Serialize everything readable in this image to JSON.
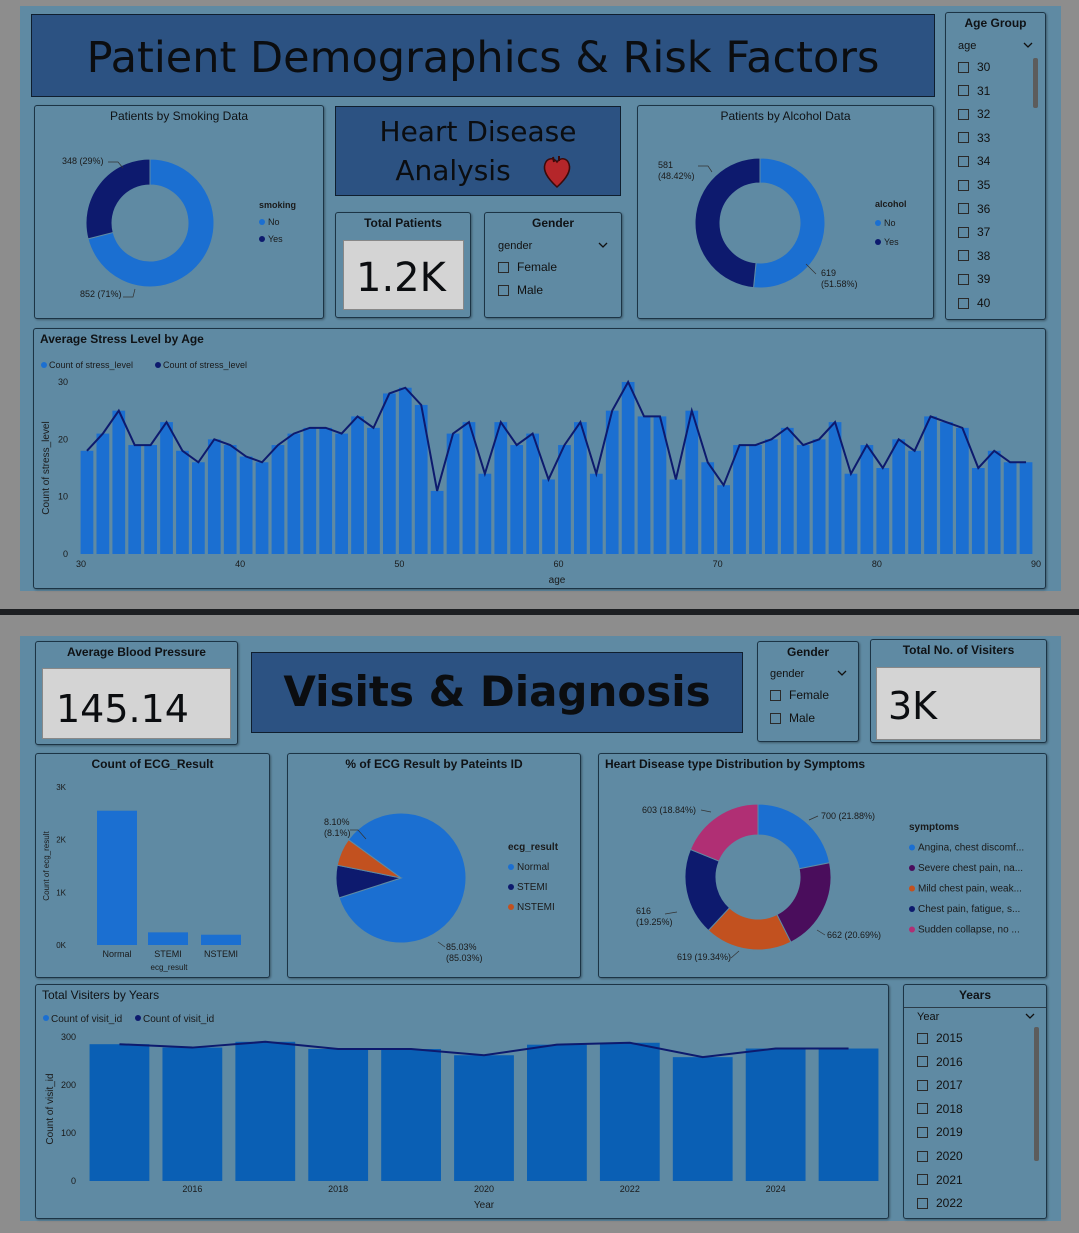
{
  "section1": {
    "title": "Patient Demographics & Risk Factors",
    "subtitle_line1": "Heart Disease",
    "subtitle_line2": "Analysis",
    "total_patients": {
      "label": "Total Patients",
      "value": "1.2K"
    },
    "gender_slicer": {
      "title": "Gender",
      "field": "gender",
      "options": [
        "Female",
        "Male"
      ]
    },
    "age_slicer": {
      "title": "Age Group",
      "field": "age",
      "options": [
        "30",
        "31",
        "32",
        "33",
        "34",
        "35",
        "36",
        "37",
        "38",
        "39",
        "40"
      ]
    }
  },
  "section2": {
    "title": "Visits & Diagnosis",
    "avg_bp": {
      "label": "Average Blood Pressure",
      "value": "145.14"
    },
    "gender_slicer": {
      "title": "Gender",
      "field": "gender",
      "options": [
        "Female",
        "Male"
      ]
    },
    "total_visitors": {
      "label": "Total No. of Visiters",
      "value": "3K"
    },
    "years_slicer": {
      "title": "Years",
      "field": "Year",
      "options": [
        "2015",
        "2016",
        "2017",
        "2018",
        "2019",
        "2020",
        "2021",
        "2022"
      ]
    }
  },
  "colors": {
    "light_blue": "#1b6fd1",
    "dark_navy": "#0d1a6e",
    "orange": "#c2511f",
    "purple": "#4a0d5c",
    "pink": "#b02f74",
    "panel": "#5f8aa3",
    "banner": "#2c5282"
  },
  "chart_data": [
    {
      "id": "smoking",
      "type": "pie",
      "donut": true,
      "title": "Patients by Smoking Data",
      "legend_title": "smoking",
      "categories": [
        "No",
        "Yes"
      ],
      "values": [
        852,
        348
      ],
      "labels": [
        "852 (71%)",
        "348 (29%)"
      ]
    },
    {
      "id": "alcohol",
      "type": "pie",
      "donut": true,
      "title": "Patients by Alcohol Data",
      "legend_title": "alcohol",
      "categories": [
        "No",
        "Yes"
      ],
      "values": [
        619,
        581
      ],
      "labels": [
        "619\n(51.58%)",
        "581\n(48.42%)"
      ]
    },
    {
      "id": "stress",
      "type": "bar",
      "title": "Average Stress Level by Age",
      "legend": [
        "Count of stress_level",
        "Count of stress_level"
      ],
      "xlabel": "age",
      "ylabel": "Count of stress_level",
      "xlim": [
        30,
        90
      ],
      "ylim": [
        0,
        30
      ],
      "xticks": [
        30,
        40,
        50,
        60,
        70,
        80,
        90
      ],
      "yticks": [
        0,
        10,
        20,
        30
      ],
      "x": [
        30,
        31,
        32,
        33,
        34,
        35,
        36,
        37,
        38,
        39,
        40,
        41,
        42,
        43,
        44,
        45,
        46,
        47,
        48,
        49,
        50,
        51,
        52,
        53,
        54,
        55,
        56,
        57,
        58,
        59,
        60,
        61,
        62,
        63,
        64,
        65,
        66,
        67,
        68,
        69,
        70,
        71,
        72,
        73,
        74,
        75,
        76,
        77,
        78,
        79,
        80,
        81,
        82,
        83,
        84,
        85,
        86,
        87,
        88,
        89
      ],
      "values": [
        18,
        21,
        25,
        19,
        19,
        23,
        18,
        16,
        20,
        19,
        17,
        16,
        19,
        21,
        22,
        22,
        21,
        24,
        22,
        28,
        29,
        26,
        11,
        21,
        23,
        14,
        23,
        19,
        21,
        13,
        19,
        23,
        14,
        25,
        30,
        24,
        24,
        13,
        25,
        16,
        12,
        19,
        19,
        20,
        22,
        19,
        20,
        23,
        14,
        19,
        15,
        20,
        18,
        24,
        23,
        22,
        15,
        18,
        16,
        16
      ]
    },
    {
      "id": "ecg_count",
      "type": "bar",
      "title": "Count of ECG_Result",
      "xlabel": "ecg_result",
      "ylabel": "Count of ecg_result",
      "categories": [
        "Normal",
        "STEMI",
        "NSTEMI"
      ],
      "values": [
        2550,
        240,
        195
      ],
      "ylim": [
        0,
        3000
      ],
      "yticks": [
        "0K",
        "1K",
        "2K",
        "3K"
      ]
    },
    {
      "id": "ecg_pct",
      "type": "pie",
      "title": "% of ECG Result by Pateints ID",
      "legend_title": "ecg_result",
      "categories": [
        "Normal",
        "STEMI",
        "NSTEMI"
      ],
      "values": [
        85.03,
        8.1,
        6.87
      ],
      "labels": [
        "85.03%\n(85.03%)",
        "8.10%\n(8.1%)",
        ""
      ]
    },
    {
      "id": "symptoms",
      "type": "pie",
      "donut": true,
      "title": "Heart Disease type Distribution by Symptoms",
      "legend_title": "symptoms",
      "categories": [
        "Angina, chest discomf...",
        "Severe chest pain, na...",
        "Mild chest pain, weak...",
        "Chest pain, fatigue, s...",
        "Sudden collapse, no ..."
      ],
      "values": [
        700,
        662,
        619,
        616,
        603
      ],
      "labels": [
        "700 (21.88%)",
        "662 (20.69%)",
        "619 (19.34%)",
        "616\n(19.25%)",
        "603 (18.84%)"
      ]
    },
    {
      "id": "visits",
      "type": "bar",
      "title": "Total Visiters by Years",
      "legend": [
        "Count of visit_id",
        "Count of visit_id"
      ],
      "xlabel": "Year",
      "ylabel": "Count of visit_id",
      "x": [
        2015,
        2016,
        2017,
        2018,
        2019,
        2020,
        2021,
        2022,
        2023,
        2024,
        2025
      ],
      "values": [
        285,
        278,
        290,
        275,
        275,
        262,
        284,
        288,
        258,
        276,
        276
      ],
      "ylim": [
        0,
        300
      ],
      "yticks": [
        0,
        100,
        200,
        300
      ],
      "xticks": [
        2016,
        2018,
        2020,
        2022,
        2024
      ]
    }
  ]
}
